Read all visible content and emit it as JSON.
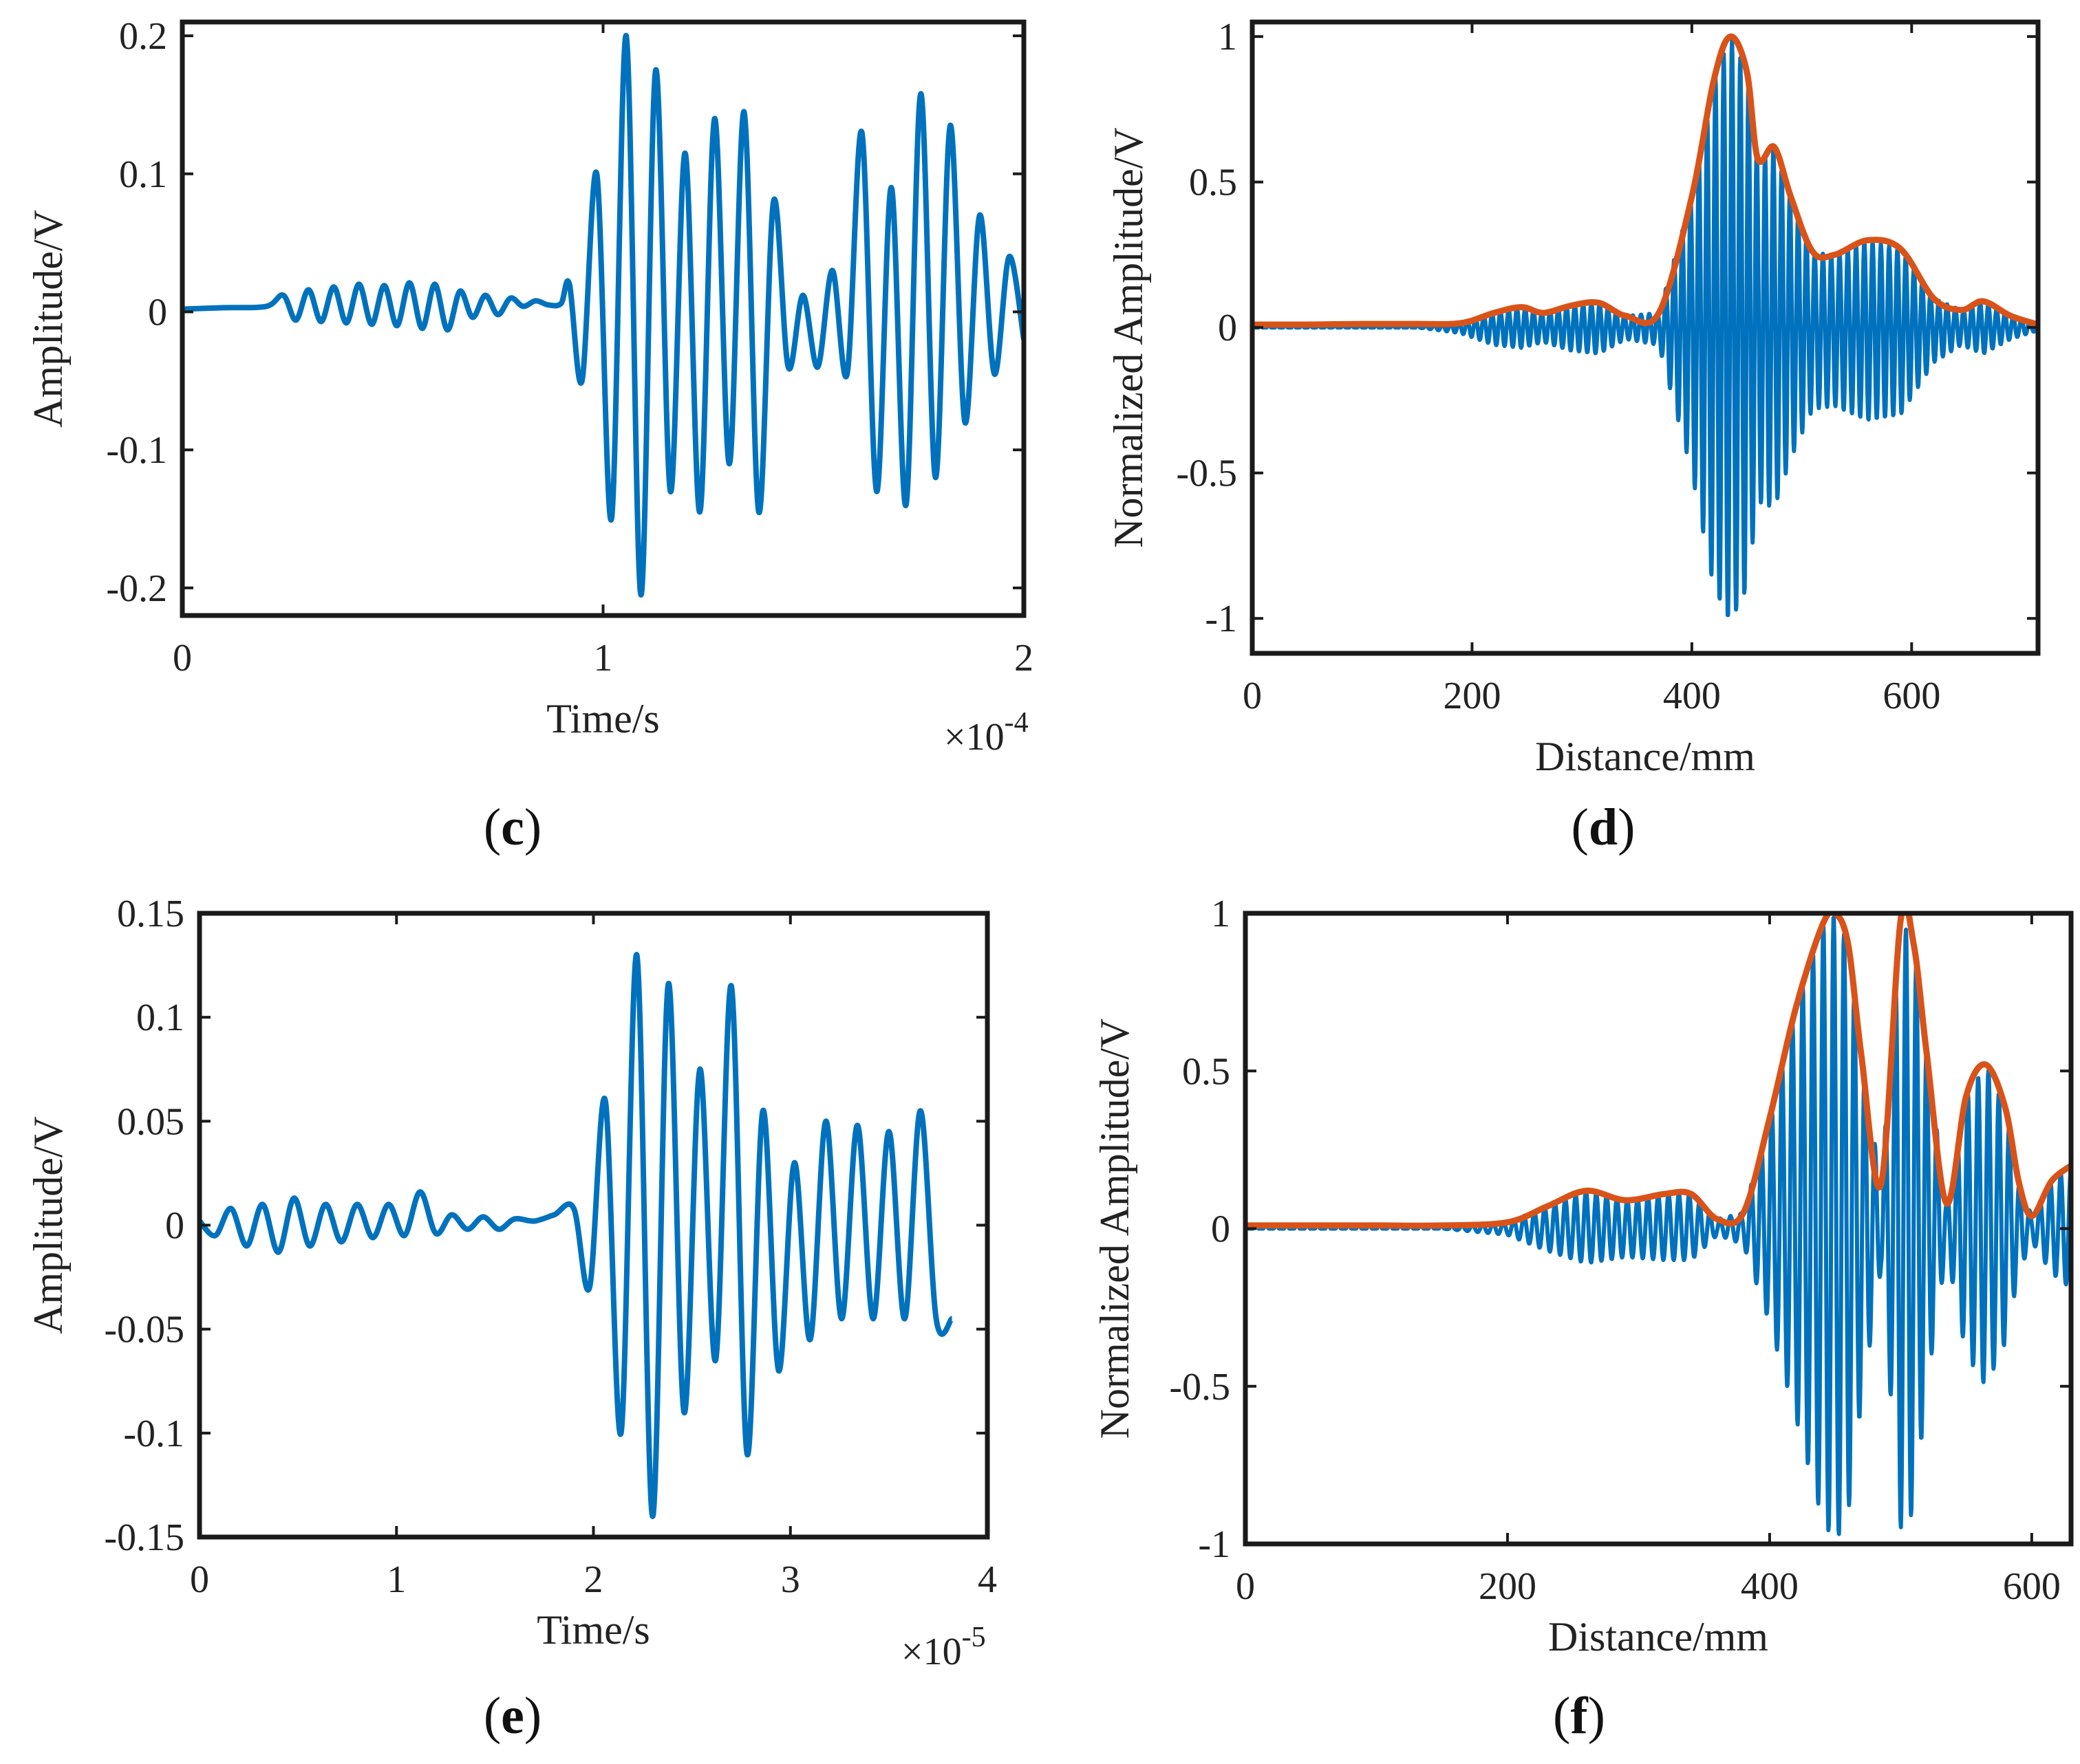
{
  "chart_data": [
    {
      "id": "c",
      "type": "line",
      "caption_letter": "c",
      "xlabel": "Time/s",
      "ylabel": "Amplitude/V",
      "x_multiplier": "×10",
      "x_exponent": "-4",
      "xlim": [
        0,
        2
      ],
      "ylim": [
        -0.22,
        0.21
      ],
      "xticks": [
        0,
        1,
        2
      ],
      "xtick_labels": [
        "0",
        "1",
        "2"
      ],
      "yticks": [
        -0.2,
        -0.1,
        0,
        0.1,
        0.2
      ],
      "ytick_labels": [
        "-0.2",
        "-0.1",
        "0",
        "0.1",
        "0.2"
      ],
      "series": [
        {
          "name": "signal",
          "color": "#0072BD",
          "x": [
            0.0,
            0.1,
            0.2,
            0.24,
            0.27,
            0.3,
            0.33,
            0.36,
            0.39,
            0.42,
            0.45,
            0.48,
            0.51,
            0.54,
            0.57,
            0.6,
            0.63,
            0.66,
            0.69,
            0.72,
            0.75,
            0.78,
            0.81,
            0.84,
            0.87,
            0.9,
            0.92,
            0.95,
            0.985,
            1.02,
            1.055,
            1.09,
            1.125,
            1.16,
            1.195,
            1.23,
            1.265,
            1.3,
            1.335,
            1.37,
            1.405,
            1.44,
            1.475,
            1.51,
            1.545,
            1.58,
            1.615,
            1.65,
            1.685,
            1.72,
            1.755,
            1.79,
            1.825,
            1.86,
            1.895,
            1.93,
            1.965,
            2.0
          ],
          "y": [
            0.002,
            0.003,
            0.004,
            0.012,
            -0.006,
            0.016,
            -0.007,
            0.018,
            -0.008,
            0.02,
            -0.009,
            0.019,
            -0.01,
            0.021,
            -0.012,
            0.02,
            -0.013,
            0.015,
            -0.004,
            0.012,
            -0.002,
            0.01,
            0.004,
            0.008,
            0.005,
            0.006,
            0.02,
            -0.05,
            0.1,
            -0.15,
            0.2,
            -0.205,
            0.175,
            -0.13,
            0.115,
            -0.145,
            0.14,
            -0.11,
            0.145,
            -0.145,
            0.08,
            -0.04,
            0.012,
            -0.04,
            0.03,
            -0.045,
            0.13,
            -0.13,
            0.09,
            -0.14,
            0.158,
            -0.12,
            0.135,
            -0.08,
            0.07,
            -0.045,
            0.04,
            -0.02
          ]
        }
      ]
    },
    {
      "id": "d",
      "type": "line",
      "caption_letter": "d",
      "xlabel": "Distance/mm",
      "ylabel": "Normalized Amplitude/V",
      "xlim": [
        0,
        715
      ],
      "ylim": [
        -1.12,
        1.05
      ],
      "xticks": [
        0,
        200,
        400,
        600
      ],
      "xtick_labels": [
        "0",
        "200",
        "400",
        "600"
      ],
      "yticks": [
        -1,
        -0.5,
        0,
        0.5,
        1
      ],
      "ytick_labels": [
        "-1",
        "-0.5",
        "0",
        "0.5",
        "1"
      ],
      "series": [
        {
          "name": "envelope",
          "color": "#D95319",
          "x": [
            0,
            50,
            100,
            150,
            190,
            220,
            245,
            265,
            290,
            315,
            340,
            370,
            400,
            420,
            435,
            450,
            460,
            475,
            490,
            510,
            530,
            560,
            590,
            620,
            645,
            665,
            690,
            715
          ],
          "y": [
            0.01,
            0.01,
            0.012,
            0.012,
            0.015,
            0.05,
            0.07,
            0.05,
            0.075,
            0.085,
            0.04,
            0.05,
            0.45,
            0.85,
            1.0,
            0.88,
            0.58,
            0.62,
            0.45,
            0.26,
            0.25,
            0.3,
            0.27,
            0.1,
            0.06,
            0.09,
            0.04,
            0.01
          ]
        },
        {
          "name": "signal",
          "color": "#0072BD",
          "x": [
            0,
            50,
            100,
            150,
            190,
            220,
            245,
            265,
            290,
            315,
            340,
            370,
            400,
            420,
            435,
            450,
            460,
            475,
            490,
            510,
            530,
            560,
            590,
            620,
            645,
            665,
            690,
            715
          ],
          "y": [
            0.0,
            0.0,
            0.0,
            0.0,
            -0.02,
            -0.06,
            -0.07,
            -0.05,
            -0.08,
            -0.09,
            -0.04,
            -0.06,
            -0.5,
            -0.9,
            -1.02,
            -0.9,
            -0.6,
            -0.62,
            -0.45,
            -0.28,
            -0.27,
            -0.32,
            -0.3,
            -0.12,
            -0.06,
            -0.09,
            -0.04,
            -0.01
          ],
          "note": "carrier oscillating within ±envelope; y lists the negative lobe"
        }
      ]
    },
    {
      "id": "e",
      "type": "line",
      "caption_letter": "e",
      "xlabel": "Time/s",
      "ylabel": "Amplitude/V",
      "x_multiplier": "×10",
      "x_exponent": "-5",
      "xlim": [
        0,
        4
      ],
      "ylim": [
        -0.15,
        0.15
      ],
      "xticks": [
        0,
        1,
        2,
        3,
        4
      ],
      "xtick_labels": [
        "0",
        "1",
        "2",
        "3",
        "4"
      ],
      "yticks": [
        -0.15,
        -0.1,
        -0.05,
        0,
        0.05,
        0.1,
        0.15
      ],
      "ytick_labels": [
        "-0.15",
        "-0.1",
        "-0.05",
        "0",
        "0.05",
        "0.1",
        "0.15"
      ],
      "series": [
        {
          "name": "signal",
          "color": "#0072BD",
          "x": [
            0.0,
            0.08,
            0.16,
            0.24,
            0.32,
            0.4,
            0.48,
            0.56,
            0.64,
            0.72,
            0.8,
            0.88,
            0.96,
            1.04,
            1.12,
            1.2,
            1.28,
            1.36,
            1.44,
            1.52,
            1.6,
            1.7,
            1.8,
            1.9,
            1.98,
            2.06,
            2.14,
            2.22,
            2.3,
            2.38,
            2.46,
            2.54,
            2.62,
            2.7,
            2.78,
            2.86,
            2.94,
            3.02,
            3.1,
            3.18,
            3.26,
            3.34,
            3.42,
            3.5,
            3.58,
            3.66,
            3.74,
            3.82
          ],
          "y": [
            0.002,
            -0.005,
            0.008,
            -0.01,
            0.01,
            -0.013,
            0.013,
            -0.01,
            0.01,
            -0.008,
            0.01,
            -0.006,
            0.01,
            -0.005,
            0.016,
            -0.004,
            0.005,
            -0.002,
            0.004,
            -0.002,
            0.003,
            0.002,
            0.005,
            0.008,
            -0.03,
            0.06,
            -0.1,
            0.13,
            -0.14,
            0.116,
            -0.09,
            0.075,
            -0.065,
            0.115,
            -0.11,
            0.055,
            -0.07,
            0.03,
            -0.055,
            0.05,
            -0.045,
            0.048,
            -0.045,
            0.045,
            -0.045,
            0.055,
            -0.045,
            -0.045
          ]
        }
      ]
    },
    {
      "id": "f",
      "type": "line",
      "caption_letter": "f",
      "xlabel": "Distance/mm",
      "ylabel": "Normalized Amplitude/V",
      "xlim": [
        0,
        630
      ],
      "ylim": [
        -1.0,
        1.0
      ],
      "xticks": [
        0,
        200,
        400,
        600
      ],
      "xtick_labels": [
        "0",
        "200",
        "400",
        "600"
      ],
      "yticks": [
        -1,
        -0.5,
        0,
        0.5,
        1
      ],
      "ytick_labels": [
        "-1",
        "-0.5",
        "0",
        "0.5",
        "1"
      ],
      "series": [
        {
          "name": "envelope",
          "color": "#D95319",
          "x": [
            0,
            50,
            100,
            150,
            200,
            230,
            260,
            290,
            320,
            340,
            360,
            380,
            400,
            420,
            440,
            450,
            460,
            470,
            485,
            500,
            510,
            520,
            535,
            550,
            565,
            580,
            590,
            600,
            615,
            630
          ],
          "y": [
            0.01,
            0.01,
            0.01,
            0.01,
            0.02,
            0.07,
            0.12,
            0.09,
            0.11,
            0.11,
            0.03,
            0.05,
            0.35,
            0.7,
            0.96,
            1.0,
            0.9,
            0.55,
            0.14,
            0.98,
            0.9,
            0.55,
            0.08,
            0.42,
            0.52,
            0.38,
            0.15,
            0.04,
            0.15,
            0.2
          ]
        },
        {
          "name": "signal",
          "color": "#0072BD",
          "x": [
            0,
            50,
            100,
            150,
            200,
            230,
            260,
            290,
            320,
            340,
            360,
            380,
            400,
            420,
            440,
            450,
            460,
            470,
            485,
            500,
            510,
            520,
            535,
            550,
            565,
            580,
            590,
            600,
            615,
            630
          ],
          "y": [
            0.0,
            0.0,
            0.0,
            0.0,
            -0.02,
            -0.07,
            -0.11,
            -0.09,
            -0.1,
            -0.1,
            -0.02,
            -0.05,
            -0.3,
            -0.6,
            -0.92,
            -1.0,
            -0.9,
            -0.55,
            -0.13,
            -0.95,
            -0.9,
            -0.5,
            -0.07,
            -0.4,
            -0.5,
            -0.36,
            -0.14,
            -0.04,
            -0.14,
            -0.19
          ],
          "note": "carrier oscillating within ±envelope; y lists the negative lobe"
        }
      ]
    }
  ]
}
